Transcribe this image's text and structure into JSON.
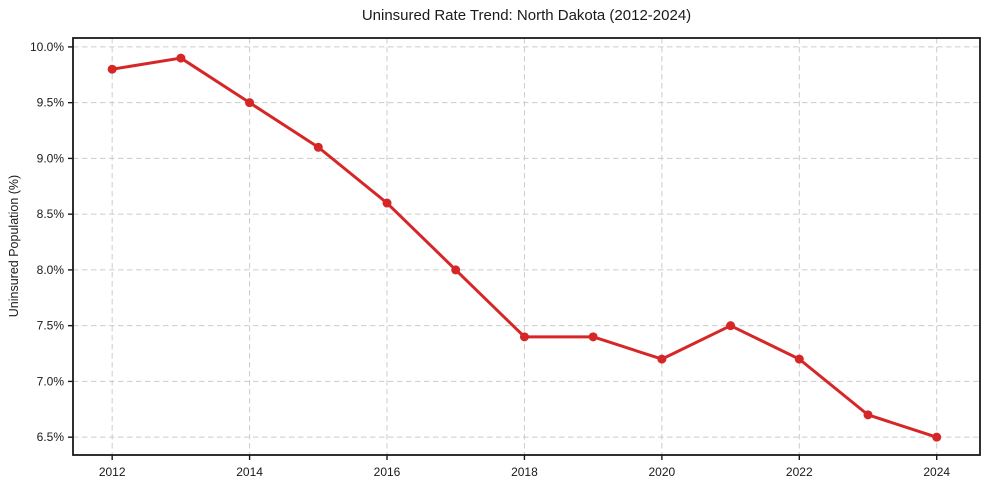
{
  "figure": {
    "background": "#ffffff"
  },
  "chart_data": {
    "type": "line",
    "title": "Uninsured Rate Trend: North Dakota (2012-2024)",
    "xlabel": "",
    "ylabel": "Uninsured Population (%)",
    "x": [
      2012,
      2013,
      2014,
      2015,
      2016,
      2017,
      2018,
      2019,
      2020,
      2021,
      2022,
      2023,
      2024
    ],
    "series": [
      {
        "name": "Uninsured rate",
        "values": [
          9.8,
          9.9,
          9.5,
          9.1,
          8.6,
          8.0,
          7.4,
          7.4,
          7.2,
          7.5,
          7.2,
          6.7,
          6.5
        ],
        "color": "#d62728",
        "marker": "circle"
      }
    ],
    "xlim": [
      2011.43,
      2024.63
    ],
    "ylim": [
      6.34,
      10.08
    ],
    "xticks": {
      "values": [
        2012,
        2014,
        2016,
        2018,
        2020,
        2022,
        2024
      ],
      "labels": [
        "2012",
        "2014",
        "2016",
        "2018",
        "2020",
        "2022",
        "2024"
      ]
    },
    "yticks": {
      "values": [
        6.5,
        7.0,
        7.5,
        8.0,
        8.5,
        9.0,
        9.5,
        10.0
      ],
      "labels": [
        "6.5%",
        "7.0%",
        "7.5%",
        "8.0%",
        "8.5%",
        "9.0%",
        "9.5%",
        "10.0%"
      ]
    },
    "grid": true,
    "grid_style": "dashed",
    "legend": false,
    "colors": {
      "line": "#d62728",
      "grid": "#cccccc",
      "axis": "#1a1a1a",
      "text": "#1a1a1a",
      "background": "#ffffff"
    },
    "style": {
      "line_width": 3,
      "marker_radius": 4.5,
      "border_width": 1.8,
      "tick_length": 5,
      "tick_font_size": 12
    }
  }
}
